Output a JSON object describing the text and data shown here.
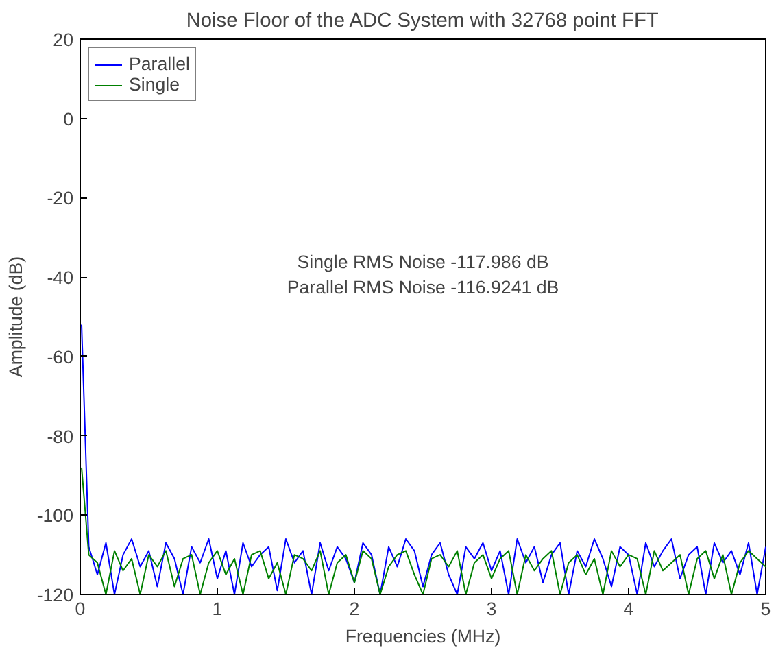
{
  "chart_data": {
    "type": "line",
    "title": "Noise Floor of the ADC System with 32768 point FFT",
    "xlabel": "Frequencies (MHz)",
    "ylabel": "Amplitude (dB)",
    "annotations": [
      "Single RMS Noise -117.986 dB",
      "Parallel RMS Noise -116.9241 dB"
    ],
    "x": [
      0.01,
      0.0625,
      0.125,
      0.1875,
      0.25,
      0.3125,
      0.375,
      0.4375,
      0.5,
      0.5625,
      0.625,
      0.6875,
      0.75,
      0.8125,
      0.875,
      0.9375,
      1,
      1.0625,
      1.125,
      1.1875,
      1.25,
      1.3125,
      1.375,
      1.4375,
      1.5,
      1.5625,
      1.625,
      1.6875,
      1.75,
      1.8125,
      1.875,
      1.9375,
      2,
      2.0625,
      2.125,
      2.1875,
      2.25,
      2.3125,
      2.375,
      2.4375,
      2.5,
      2.5625,
      2.625,
      2.6875,
      2.75,
      2.8125,
      2.875,
      2.9375,
      3,
      3.0625,
      3.125,
      3.1875,
      3.25,
      3.3125,
      3.375,
      3.4375,
      3.5,
      3.5625,
      3.625,
      3.6875,
      3.75,
      3.8125,
      3.875,
      3.9375,
      4,
      4.0625,
      4.125,
      4.1875,
      4.25,
      4.3125,
      4.375,
      4.4375,
      4.5,
      4.5625,
      4.625,
      4.6875,
      4.75,
      4.8125,
      4.875,
      4.9375,
      5
    ],
    "series": [
      {
        "name": "Parallel",
        "color": "#0000ff",
        "values": [
          -52,
          -108,
          -115,
          -107,
          -120,
          -110,
          -106,
          -113,
          -109,
          -118,
          -107,
          -111,
          -120,
          -108,
          -112,
          -106,
          -116,
          -109,
          -120,
          -107,
          -113,
          -110,
          -108,
          -119,
          -106,
          -112,
          -109,
          -120,
          -107,
          -114,
          -108,
          -111,
          -117,
          -107,
          -110,
          -120,
          -108,
          -113,
          -106,
          -109,
          -118,
          -110,
          -107,
          -115,
          -120,
          -108,
          -111,
          -107,
          -114,
          -109,
          -120,
          -106,
          -112,
          -108,
          -117,
          -110,
          -107,
          -120,
          -109,
          -113,
          -106,
          -111,
          -118,
          -108,
          -110,
          -120,
          -107,
          -113,
          -109,
          -106,
          -116,
          -110,
          -108,
          -120,
          -107,
          -112,
          -109,
          -115,
          -107,
          -120,
          -108
        ]
      },
      {
        "name": "Single",
        "color": "#008000",
        "values": [
          -88,
          -110,
          -112,
          -120,
          -109,
          -114,
          -111,
          -120,
          -110,
          -113,
          -109,
          -118,
          -111,
          -110,
          -120,
          -112,
          -109,
          -115,
          -111,
          -120,
          -110,
          -109,
          -116,
          -112,
          -120,
          -110,
          -111,
          -114,
          -109,
          -120,
          -112,
          -110,
          -117,
          -109,
          -111,
          -120,
          -113,
          -110,
          -109,
          -115,
          -120,
          -111,
          -110,
          -113,
          -109,
          -120,
          -112,
          -110,
          -116,
          -111,
          -109,
          -120,
          -110,
          -114,
          -111,
          -109,
          -120,
          -112,
          -110,
          -115,
          -111,
          -120,
          -109,
          -113,
          -110,
          -111,
          -120,
          -109,
          -114,
          -112,
          -110,
          -120,
          -111,
          -109,
          -116,
          -110,
          -120,
          -112,
          -109,
          -111,
          -113
        ]
      }
    ],
    "xlim": [
      0,
      5
    ],
    "ylim": [
      -120,
      20
    ],
    "xticks": [
      0,
      1,
      2,
      3,
      4,
      5
    ],
    "yticks": [
      -120,
      -100,
      -80,
      -60,
      -40,
      -20,
      0,
      20
    ],
    "legend": "top left"
  }
}
